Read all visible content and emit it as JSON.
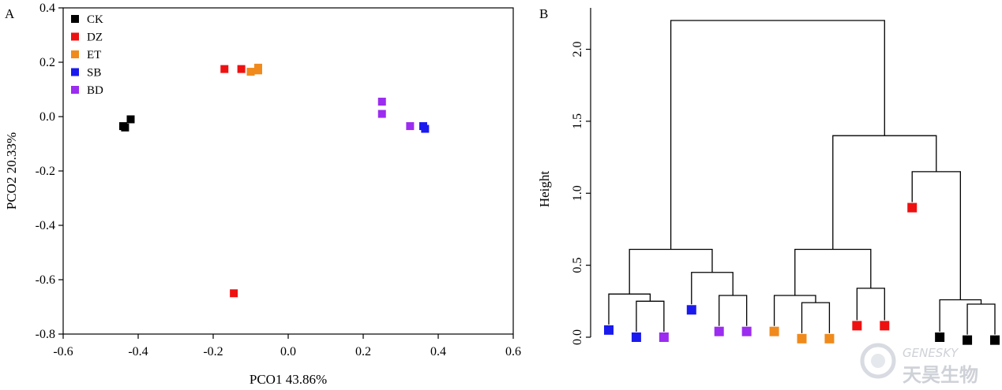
{
  "panels": {
    "a_label": "A",
    "b_label": "B"
  },
  "colors": {
    "CK": "#000000",
    "DZ": "#ee1111",
    "ET": "#f08a1c",
    "SB": "#1a1aee",
    "BD": "#9b2cf0"
  },
  "chart_data": [
    {
      "type": "scatter",
      "xlabel": "PCO1 43.86%",
      "ylabel": "PCO2 20.33%",
      "xlim": [
        -0.6,
        0.6
      ],
      "ylim": [
        -0.8,
        0.4
      ],
      "xticks": [
        -0.6,
        -0.4,
        -0.2,
        0.0,
        0.2,
        0.4,
        0.6
      ],
      "xtick_labels": [
        "-0.6",
        "-0.4",
        "-0.2",
        "0.0",
        "0.2",
        "0.4",
        "0.6"
      ],
      "yticks": [
        -0.8,
        -0.6,
        -0.4,
        -0.2,
        0.0,
        0.2,
        0.4
      ],
      "ytick_labels": [
        "-0.8",
        "-0.6",
        "-0.4",
        "-0.2",
        "0.0",
        "0.2",
        "0.4"
      ],
      "grid": false,
      "legend_position": "top-left",
      "series": [
        {
          "name": "CK",
          "color": "#000000",
          "points": [
            [
              -0.44,
              -0.035
            ],
            [
              -0.435,
              -0.04
            ],
            [
              -0.42,
              -0.01
            ]
          ]
        },
        {
          "name": "DZ",
          "color": "#ee1111",
          "points": [
            [
              -0.17,
              0.175
            ],
            [
              -0.125,
              0.175
            ],
            [
              -0.145,
              -0.65
            ]
          ]
        },
        {
          "name": "ET",
          "color": "#f08a1c",
          "points": [
            [
              -0.1,
              0.165
            ],
            [
              -0.08,
              0.17
            ],
            [
              -0.08,
              0.18
            ]
          ]
        },
        {
          "name": "SB",
          "color": "#1a1aee",
          "points": [
            [
              0.36,
              -0.035
            ],
            [
              0.365,
              -0.045
            ]
          ]
        },
        {
          "name": "BD",
          "color": "#9b2cf0",
          "points": [
            [
              0.25,
              0.055
            ],
            [
              0.25,
              0.01
            ],
            [
              0.325,
              -0.035
            ]
          ]
        }
      ]
    },
    {
      "type": "dendrogram",
      "ylabel": "Height",
      "ylim": [
        0,
        2.2
      ],
      "yticks": [
        0.0,
        0.5,
        1.0,
        1.5,
        2.0
      ],
      "ytick_labels": [
        "0.0",
        "0.5",
        "1.0",
        "1.5",
        "2.0"
      ],
      "leaves": [
        {
          "group": "SB",
          "height": 0.05
        },
        {
          "group": "SB",
          "height": 0.0
        },
        {
          "group": "BD",
          "height": 0.0
        },
        {
          "group": "SB",
          "height": 0.19
        },
        {
          "group": "BD",
          "height": 0.04
        },
        {
          "group": "BD",
          "height": 0.04
        },
        {
          "group": "ET",
          "height": 0.04
        },
        {
          "group": "ET",
          "height": -0.01
        },
        {
          "group": "ET",
          "height": -0.01
        },
        {
          "group": "DZ",
          "height": 0.08
        },
        {
          "group": "DZ",
          "height": 0.08
        },
        {
          "group": "DZ",
          "height": 0.9
        },
        {
          "group": "CK",
          "height": 0.0
        },
        {
          "group": "CK",
          "height": -0.02
        },
        {
          "group": "CK",
          "height": -0.02
        }
      ],
      "merges": [
        {
          "left": "L1",
          "right": "L2",
          "height": 0.25
        },
        {
          "left": "L0",
          "right": "M0",
          "height": 0.3
        },
        {
          "left": "L4",
          "right": "L5",
          "height": 0.29
        },
        {
          "left": "L3",
          "right": "M2",
          "height": 0.45
        },
        {
          "left": "M1",
          "right": "M3",
          "height": 0.61
        },
        {
          "left": "L7",
          "right": "L8",
          "height": 0.24
        },
        {
          "left": "L6",
          "right": "M5",
          "height": 0.29
        },
        {
          "left": "L9",
          "right": "L10",
          "height": 0.34
        },
        {
          "left": "M6",
          "right": "M7",
          "height": 0.61
        },
        {
          "left": "L13",
          "right": "L14",
          "height": 0.23
        },
        {
          "left": "L12",
          "right": "M9",
          "height": 0.26
        },
        {
          "left": "L11",
          "right": "M10",
          "height": 1.15
        },
        {
          "left": "M8",
          "right": "M11",
          "height": 1.4
        },
        {
          "left": "M4",
          "right": "M12",
          "height": 2.2
        }
      ]
    }
  ],
  "watermark": {
    "brand_en": "GENESKY",
    "brand_cn": "天昊生物"
  }
}
